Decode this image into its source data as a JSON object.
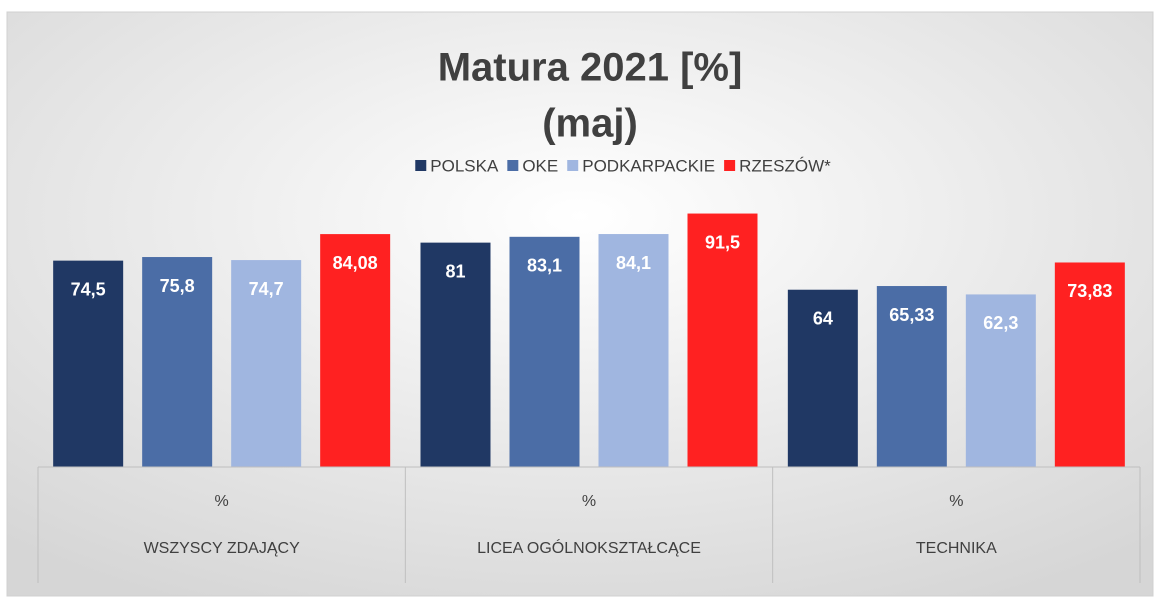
{
  "chart_data": {
    "type": "bar",
    "title": "Matura 2021 [%]",
    "subtitle": "(maj)",
    "categories": [
      "WSZYSCY ZDAJĄCY",
      "LICEA OGÓLNOKSZTAŁCĄCE",
      "TECHNIKA"
    ],
    "category_sublabels": [
      "%",
      "%",
      "%"
    ],
    "series": [
      {
        "name": "POLSKA",
        "color": "#203864",
        "values": [
          74.5,
          81,
          64
        ],
        "value_labels": [
          "74,5",
          "81",
          "64"
        ]
      },
      {
        "name": "OKE",
        "color": "#4b6da6",
        "values": [
          75.8,
          83.1,
          65.33
        ],
        "value_labels": [
          "75,8",
          "83,1",
          "65,33"
        ]
      },
      {
        "name": "PODKARPACKIE",
        "color": "#a0b6e0",
        "values": [
          74.7,
          84.1,
          62.3
        ],
        "value_labels": [
          "74,7",
          "84,1",
          "62,3"
        ]
      },
      {
        "name": "RZESZÓW*",
        "color": "#ff2121",
        "values": [
          84.08,
          91.5,
          73.83
        ],
        "value_labels": [
          "84,08",
          "91,5",
          "73,83"
        ]
      }
    ],
    "ylim": [
      0,
      100
    ],
    "legend": "top"
  }
}
